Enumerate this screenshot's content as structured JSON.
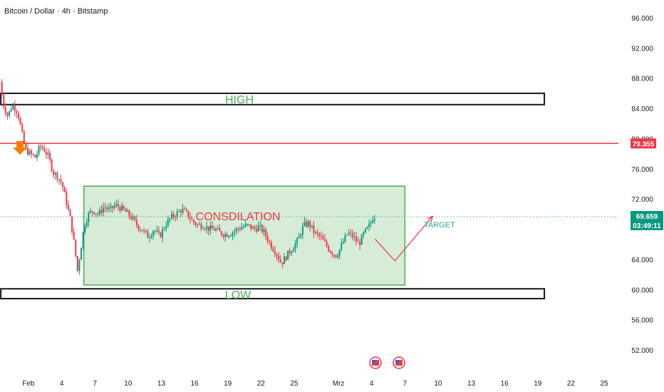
{
  "header": {
    "symbol": "Bitcoin / Dollar · 4h · Bitstamp"
  },
  "colors": {
    "up": "#089981",
    "down": "#F23645",
    "resistance_line": "#F23645",
    "range_fill": "#C8E6C9",
    "range_border": "#4CAF50",
    "zone_label": "#4CAF50",
    "annotation_red": "#F23645",
    "target_text": "#26A69A",
    "price_badge": "#089981",
    "arrow_orange": "#F57C00"
  },
  "chart_data": {
    "type": "candlestick",
    "title": "Bitcoin / Dollar · 4h · Bitstamp",
    "xlabel": "",
    "ylabel": "",
    "ylim": [
      50000,
      98500
    ],
    "y_ticks": [
      {
        "value": 96000,
        "label": "96.000"
      },
      {
        "value": 92000,
        "label": "92.000"
      },
      {
        "value": 88000,
        "label": "88.000"
      },
      {
        "value": 84000,
        "label": "84.000"
      },
      {
        "value": 80000,
        "label": "80.000"
      },
      {
        "value": 76000,
        "label": "76.000"
      },
      {
        "value": 72000,
        "label": "72.000"
      },
      {
        "value": 64000,
        "label": "64.000"
      },
      {
        "value": 60000,
        "label": "60.000"
      },
      {
        "value": 56000,
        "label": "56.000"
      },
      {
        "value": 52000,
        "label": "52.000"
      }
    ],
    "x_ticks": [
      {
        "day": 1,
        "label": "Feb"
      },
      {
        "day": 4,
        "label": "4"
      },
      {
        "day": 7,
        "label": "7"
      },
      {
        "day": 10,
        "label": "10"
      },
      {
        "day": 13,
        "label": "13"
      },
      {
        "day": 16,
        "label": "16"
      },
      {
        "day": 19,
        "label": "19"
      },
      {
        "day": 22,
        "label": "22"
      },
      {
        "day": 25,
        "label": "25"
      },
      {
        "day": 29,
        "label": "Mrz"
      },
      {
        "day": 32,
        "label": "4"
      },
      {
        "day": 35,
        "label": "7"
      },
      {
        "day": 38,
        "label": "10"
      },
      {
        "day": 41,
        "label": "13"
      },
      {
        "day": 44,
        "label": "16"
      },
      {
        "day": 47,
        "label": "19"
      },
      {
        "day": 50,
        "label": "22"
      },
      {
        "day": 53,
        "label": "25"
      }
    ],
    "x_range_days": [
      -1.5,
      55.3
    ],
    "price_path": [
      [
        -1.4,
        87500
      ],
      [
        -1.1,
        84500
      ],
      [
        -0.7,
        83000
      ],
      [
        -0.3,
        84500
      ],
      [
        0.2,
        83500
      ],
      [
        0.6,
        80500
      ],
      [
        0.9,
        78500
      ],
      [
        1.3,
        78000
      ],
      [
        1.8,
        77500
      ],
      [
        2.2,
        79000
      ],
      [
        2.6,
        78500
      ],
      [
        3.0,
        77500
      ],
      [
        3.4,
        75500
      ],
      [
        3.8,
        75000
      ],
      [
        4.2,
        74000
      ],
      [
        4.6,
        71500
      ],
      [
        5.0,
        69000
      ],
      [
        5.3,
        66000
      ],
      [
        5.6,
        62500
      ],
      [
        5.9,
        65500
      ],
      [
        6.2,
        68500
      ],
      [
        6.6,
        70000
      ],
      [
        7.0,
        70500
      ],
      [
        7.5,
        70000
      ],
      [
        8.0,
        71000
      ],
      [
        8.5,
        70500
      ],
      [
        9.0,
        71200
      ],
      [
        9.5,
        70800
      ],
      [
        10.0,
        70200
      ],
      [
        10.5,
        69500
      ],
      [
        11.0,
        68500
      ],
      [
        11.5,
        67800
      ],
      [
        12.0,
        67000
      ],
      [
        12.5,
        68000
      ],
      [
        13.0,
        67000
      ],
      [
        13.5,
        68500
      ],
      [
        14.0,
        69500
      ],
      [
        14.5,
        70000
      ],
      [
        15.0,
        70600
      ],
      [
        15.5,
        70000
      ],
      [
        16.0,
        69000
      ],
      [
        16.5,
        68500
      ],
      [
        17.0,
        68500
      ],
      [
        17.5,
        68000
      ],
      [
        18.0,
        68000
      ],
      [
        18.5,
        67500
      ],
      [
        19.0,
        67300
      ],
      [
        19.5,
        67500
      ],
      [
        20.0,
        68000
      ],
      [
        20.5,
        68300
      ],
      [
        21.0,
        68500
      ],
      [
        21.5,
        68000
      ],
      [
        22.0,
        68300
      ],
      [
        22.5,
        67500
      ],
      [
        23.0,
        66000
      ],
      [
        23.5,
        65000
      ],
      [
        24.0,
        63500
      ],
      [
        24.5,
        64500
      ],
      [
        25.0,
        65500
      ],
      [
        25.5,
        66500
      ],
      [
        26.0,
        68500
      ],
      [
        26.5,
        68800
      ],
      [
        27.0,
        67500
      ],
      [
        27.5,
        67000
      ],
      [
        28.0,
        66000
      ],
      [
        28.5,
        65000
      ],
      [
        29.0,
        64500
      ],
      [
        29.5,
        66000
      ],
      [
        30.0,
        67500
      ],
      [
        30.5,
        67000
      ],
      [
        31.0,
        66000
      ],
      [
        31.5,
        67500
      ],
      [
        32.0,
        68500
      ],
      [
        32.3,
        69659
      ]
    ],
    "levels": [
      {
        "name": "resistance",
        "price": 79355,
        "label": "79.355"
      }
    ],
    "zones": [
      {
        "label": "HIGH",
        "low": 84500,
        "high": 86000,
        "from_day": -1.5,
        "to_day": 47.6
      },
      {
        "label": "LOW",
        "low": 58800,
        "high": 60100,
        "from_day": -1.5,
        "to_day": 47.6
      },
      {
        "label": "CONSDILATION",
        "low": 60600,
        "high": 73700,
        "from_day": 6.0,
        "to_day": 35.0
      }
    ],
    "annotations": {
      "target_label": "TARGET",
      "projection_path": [
        [
          32.3,
          66700
        ],
        [
          34.1,
          63800
        ],
        [
          37.5,
          69700
        ]
      ]
    },
    "current_price": {
      "value": 69659,
      "label": "69.659",
      "countdown": "03:49:11"
    }
  }
}
